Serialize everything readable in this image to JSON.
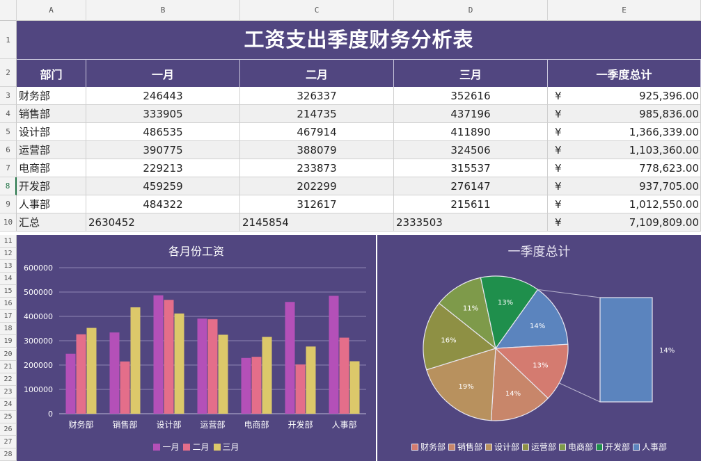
{
  "sheet": {
    "columns": [
      "A",
      "B",
      "C",
      "D",
      "E"
    ],
    "rows": [
      "1",
      "2",
      "3",
      "4",
      "5",
      "6",
      "7",
      "8",
      "9",
      "10",
      "11",
      "12",
      "13",
      "14",
      "15",
      "16",
      "17",
      "18",
      "19",
      "20",
      "21",
      "22",
      "23",
      "24",
      "25",
      "26",
      "27",
      "28"
    ],
    "active_row": "8"
  },
  "table": {
    "title": "工资支出季度财务分析表",
    "headers": [
      "部门",
      "一月",
      "二月",
      "三月",
      "一季度总计"
    ],
    "currency_symbol": "¥",
    "rows": [
      {
        "dept": "财务部",
        "m1": "246443",
        "m2": "326337",
        "m3": "352616",
        "total": "925,396.00"
      },
      {
        "dept": "销售部",
        "m1": "333905",
        "m2": "214735",
        "m3": "437196",
        "total": "985,836.00"
      },
      {
        "dept": "设计部",
        "m1": "486535",
        "m2": "467914",
        "m3": "411890",
        "total": "1,366,339.00"
      },
      {
        "dept": "运营部",
        "m1": "390775",
        "m2": "388079",
        "m3": "324506",
        "total": "1,103,360.00"
      },
      {
        "dept": "电商部",
        "m1": "229213",
        "m2": "233873",
        "m3": "315537",
        "total": "778,623.00"
      },
      {
        "dept": "开发部",
        "m1": "459259",
        "m2": "202299",
        "m3": "276147",
        "total": "937,705.00"
      },
      {
        "dept": "人事部",
        "m1": "484322",
        "m2": "312617",
        "m3": "215611",
        "total": "1,012,550.00"
      }
    ],
    "sum_row": {
      "dept": "汇总",
      "m1": "2630452",
      "m2": "2145854",
      "m3": "2333503",
      "total": "7,109,809.00"
    }
  },
  "chart_data": [
    {
      "type": "bar",
      "title": "各月份工资",
      "categories": [
        "财务部",
        "销售部",
        "设计部",
        "运营部",
        "电商部",
        "开发部",
        "人事部"
      ],
      "series": [
        {
          "name": "一月",
          "color": "#b450b8",
          "values": [
            246443,
            333905,
            486535,
            390775,
            229213,
            459259,
            484322
          ]
        },
        {
          "name": "二月",
          "color": "#e46e8a",
          "values": [
            326337,
            214735,
            467914,
            388079,
            233873,
            202299,
            312617
          ]
        },
        {
          "name": "三月",
          "color": "#dcc86a",
          "values": [
            352616,
            437196,
            411890,
            324506,
            315537,
            276147,
            215611
          ]
        }
      ],
      "ylim": [
        0,
        600000
      ],
      "yticks": [
        "0",
        "100000",
        "200000",
        "300000",
        "400000",
        "500000",
        "600000"
      ],
      "grid": true,
      "legend": "bottom"
    },
    {
      "type": "pie",
      "title": "一季度总计",
      "labels": [
        "财务部",
        "销售部",
        "设计部",
        "运营部",
        "电商部",
        "开发部",
        "人事部"
      ],
      "values": [
        925396,
        985836,
        1366339,
        1103360,
        778623,
        937705,
        1012550
      ],
      "slice_labels": [
        "13%",
        "14%",
        "19%",
        "16%",
        "11%",
        "13%",
        "14%"
      ],
      "colors": [
        "#d47b70",
        "#c8866a",
        "#b8915e",
        "#8e9044",
        "#7e9a4a",
        "#1f8f4c",
        "#5b84be"
      ],
      "exploded_label": "14%",
      "legend": "bottom"
    }
  ]
}
